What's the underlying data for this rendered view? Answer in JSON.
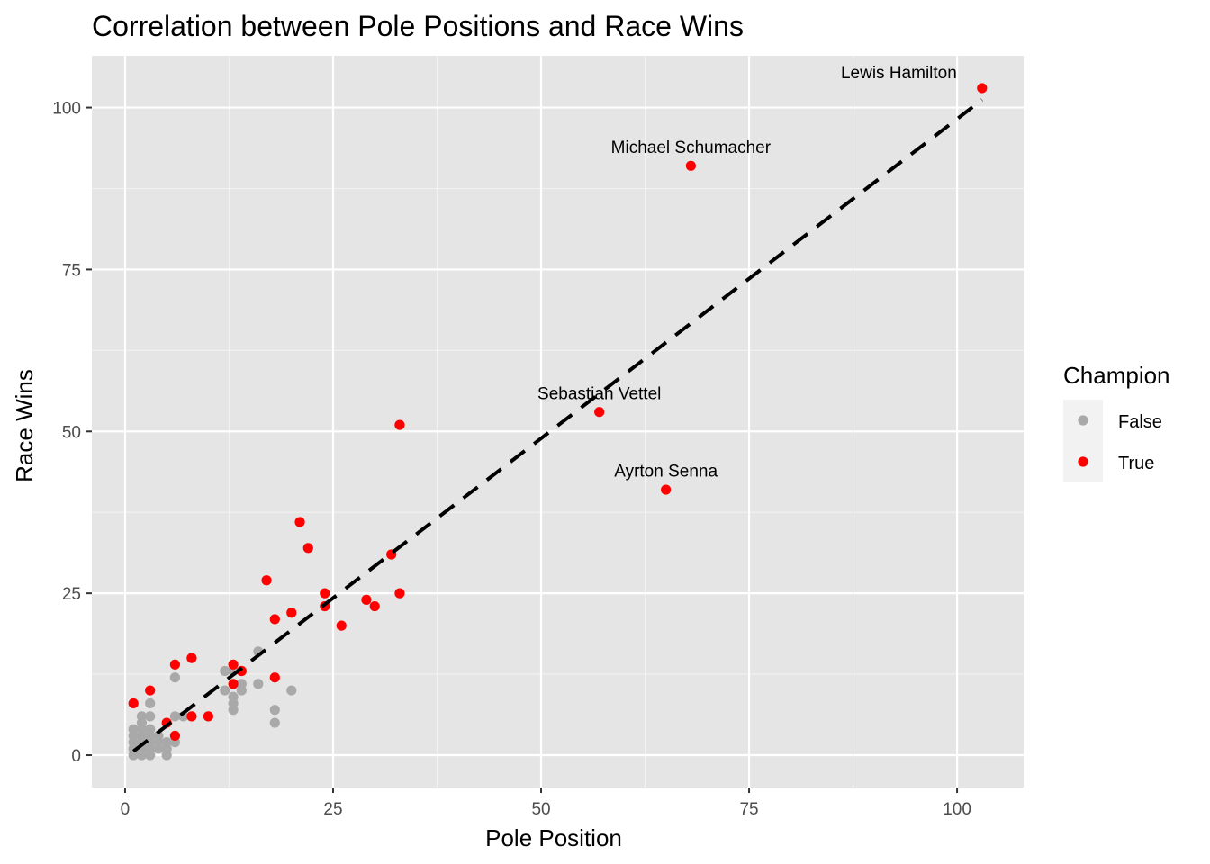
{
  "chart_data": {
    "type": "scatter",
    "title": "Correlation between Pole Positions and Race Wins",
    "xlabel": "Pole Position",
    "ylabel": "Race Wins",
    "xlim": [
      -4,
      108
    ],
    "ylim": [
      -5,
      108
    ],
    "x_ticks": [
      0,
      25,
      50,
      75,
      100
    ],
    "y_ticks": [
      0,
      25,
      50,
      75,
      100
    ],
    "x_tick_labels": [
      "0",
      "25",
      "50",
      "75",
      "100"
    ],
    "y_tick_labels": [
      "0",
      "25",
      "50",
      "75",
      "100"
    ],
    "grid": true,
    "legend": {
      "title": "Champion",
      "placement": "right",
      "entries": [
        {
          "label": "False",
          "color": "#a9a9a9"
        },
        {
          "label": "True",
          "color": "#ff0000"
        }
      ]
    },
    "series": [
      {
        "name": "False",
        "color": "#a9a9a9",
        "points": [
          [
            1,
            0
          ],
          [
            1,
            1
          ],
          [
            1,
            2
          ],
          [
            1,
            3
          ],
          [
            1,
            4
          ],
          [
            2,
            0
          ],
          [
            2,
            1
          ],
          [
            2,
            2
          ],
          [
            2,
            3
          ],
          [
            2,
            4
          ],
          [
            2,
            5
          ],
          [
            2,
            6
          ],
          [
            3,
            0
          ],
          [
            3,
            1
          ],
          [
            3,
            2
          ],
          [
            3,
            3
          ],
          [
            3,
            4
          ],
          [
            3,
            6
          ],
          [
            3,
            8
          ],
          [
            4,
            1
          ],
          [
            4,
            2
          ],
          [
            4,
            3
          ],
          [
            5,
            0
          ],
          [
            5,
            1
          ],
          [
            5,
            2
          ],
          [
            6,
            2
          ],
          [
            6,
            6
          ],
          [
            6,
            12
          ],
          [
            7,
            6
          ],
          [
            12,
            10
          ],
          [
            12,
            13
          ],
          [
            13,
            7
          ],
          [
            13,
            8
          ],
          [
            13,
            9
          ],
          [
            13,
            13
          ],
          [
            14,
            10
          ],
          [
            14,
            11
          ],
          [
            16,
            11
          ],
          [
            16,
            16
          ],
          [
            18,
            5
          ],
          [
            18,
            7
          ],
          [
            20,
            10
          ]
        ]
      },
      {
        "name": "True",
        "color": "#ff0000",
        "points": [
          [
            1,
            8
          ],
          [
            3,
            10
          ],
          [
            5,
            5
          ],
          [
            6,
            3
          ],
          [
            6,
            14
          ],
          [
            8,
            6
          ],
          [
            8,
            15
          ],
          [
            10,
            6
          ],
          [
            13,
            11
          ],
          [
            13,
            14
          ],
          [
            14,
            13
          ],
          [
            17,
            27
          ],
          [
            18,
            12
          ],
          [
            18,
            21
          ],
          [
            20,
            22
          ],
          [
            21,
            36
          ],
          [
            22,
            32
          ],
          [
            24,
            23
          ],
          [
            24,
            25
          ],
          [
            26,
            20
          ],
          [
            29,
            24
          ],
          [
            30,
            23
          ],
          [
            32,
            31
          ],
          [
            33,
            25
          ],
          [
            33,
            51
          ],
          [
            57,
            53
          ],
          [
            65,
            41
          ],
          [
            68,
            91
          ],
          [
            103,
            103
          ]
        ]
      }
    ],
    "trend_line": {
      "style": "dashed",
      "color": "#000000",
      "x": [
        1,
        103
      ],
      "y": [
        0.6,
        101.2
      ]
    },
    "annotations": [
      {
        "text": "Lewis Hamilton",
        "x": 93,
        "y": 104.5
      },
      {
        "text": "Michael Schumacher",
        "x": 68,
        "y": 93
      },
      {
        "text": "Sebastian Vettel",
        "x": 57,
        "y": 55
      },
      {
        "text": "Ayrton Senna",
        "x": 65,
        "y": 43
      }
    ]
  }
}
